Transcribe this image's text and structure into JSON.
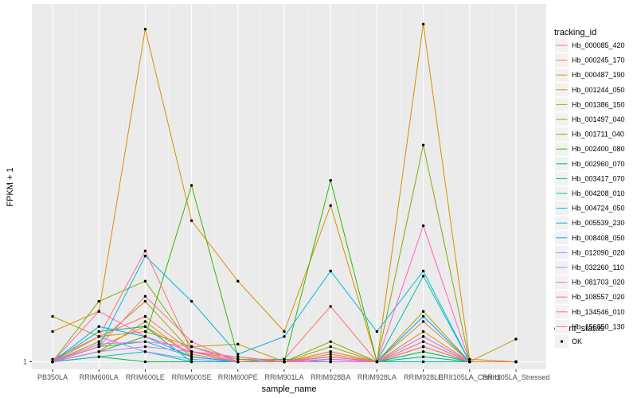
{
  "chart_data": {
    "type": "line",
    "xlabel": "sample_name",
    "ylabel": "FPKM + 1",
    "y_ticks": [
      "1"
    ],
    "ylim": [
      0.85,
      8.1
    ],
    "grid": true,
    "legend_placement": "right",
    "categories": [
      "PB350LA",
      "RRIM600LA",
      "RRIM600LE",
      "RRIM600SE",
      "RRIM600PE",
      "RRIM901LA",
      "RRIM928BA",
      "RRIM928LA",
      "RRIM928LE",
      "RRII105LA_Control",
      "RRII105LA_Stressed"
    ],
    "legend_title": "tracking_id",
    "series": [
      {
        "name": "Hb_000085_420",
        "color": "#F8766D",
        "values": [
          1.05,
          1.5,
          1.9,
          1.2,
          1.05,
          1.05,
          2.1,
          1.0,
          1.3,
          1.0,
          1.0
        ]
      },
      {
        "name": "Hb_000245_170",
        "color": "#F0823B",
        "values": [
          1.0,
          1.3,
          1.7,
          1.15,
          1.0,
          1.0,
          1.2,
          1.0,
          1.8,
          1.0,
          1.0
        ]
      },
      {
        "name": "Hb_000487_190",
        "color": "#E48F00",
        "values": [
          1.0,
          1.2,
          1.8,
          1.1,
          1.0,
          1.0,
          1.15,
          1.0,
          1.6,
          1.0,
          1.0
        ]
      },
      {
        "name": "Hb_001244_050",
        "color": "#D89000",
        "values": [
          1.6,
          2.0,
          7.6,
          3.8,
          2.6,
          1.6,
          4.1,
          1.0,
          7.7,
          1.05,
          1.0
        ]
      },
      {
        "name": "Hb_001386_150",
        "color": "#C09B00",
        "values": [
          1.9,
          1.5,
          1.6,
          1.3,
          1.35,
          1.0,
          1.1,
          1.0,
          1.4,
          1.0,
          1.45
        ]
      },
      {
        "name": "Hb_001497_040",
        "color": "#A3A500",
        "values": [
          1.0,
          1.4,
          2.2,
          1.2,
          1.0,
          1.0,
          1.3,
          1.0,
          2.0,
          1.0,
          1.0
        ]
      },
      {
        "name": "Hb_001711_040",
        "color": "#7CAE00",
        "values": [
          1.0,
          2.2,
          2.6,
          1.3,
          1.05,
          1.0,
          1.4,
          1.0,
          5.3,
          1.0,
          1.0
        ]
      },
      {
        "name": "Hb_002400_080",
        "color": "#39B600",
        "values": [
          1.0,
          1.2,
          1.5,
          4.5,
          1.1,
          1.0,
          4.6,
          1.0,
          1.2,
          1.0,
          1.0
        ]
      },
      {
        "name": "Hb_002960_070",
        "color": "#00BB4E",
        "values": [
          1.0,
          1.1,
          1.0,
          1.0,
          1.0,
          1.0,
          1.1,
          1.0,
          1.1,
          1.0,
          1.0
        ]
      },
      {
        "name": "Hb_003417_070",
        "color": "#00BF7D",
        "values": [
          1.0,
          1.6,
          1.7,
          1.0,
          1.0,
          1.0,
          1.0,
          1.0,
          1.2,
          1.0,
          1.0
        ]
      },
      {
        "name": "Hb_004208_010",
        "color": "#00C1A3",
        "values": [
          1.0,
          1.3,
          1.4,
          1.1,
          1.0,
          1.05,
          1.0,
          1.0,
          2.7,
          1.0,
          1.0
        ]
      },
      {
        "name": "Hb_004724_050",
        "color": "#00BFC4",
        "values": [
          1.0,
          1.1,
          1.2,
          1.0,
          1.0,
          1.0,
          1.0,
          1.0,
          1.0,
          1.0,
          1.0
        ]
      },
      {
        "name": "Hb_005539_230",
        "color": "#00B8E5",
        "values": [
          1.0,
          1.3,
          3.1,
          2.2,
          1.15,
          1.5,
          2.8,
          1.6,
          2.8,
          1.0,
          1.0
        ]
      },
      {
        "name": "Hb_008408_050",
        "color": "#00A9FF",
        "values": [
          1.0,
          1.7,
          1.5,
          1.1,
          1.0,
          1.0,
          1.1,
          1.0,
          1.9,
          1.0,
          1.0
        ]
      },
      {
        "name": "Hb_012090_020",
        "color": "#8794FF",
        "values": [
          1.0,
          1.5,
          1.2,
          1.05,
          1.0,
          1.0,
          1.05,
          1.0,
          1.5,
          1.0,
          1.0
        ]
      },
      {
        "name": "Hb_032260_110",
        "color": "#C77CFF",
        "values": [
          1.0,
          1.2,
          1.3,
          1.2,
          1.0,
          1.0,
          1.0,
          1.0,
          1.5,
          1.0,
          1.0
        ]
      },
      {
        "name": "Hb_081703_020",
        "color": "#E76BF3",
        "values": [
          1.0,
          1.35,
          1.4,
          1.3,
          1.0,
          1.0,
          1.05,
          1.0,
          1.3,
          1.0,
          1.0
        ]
      },
      {
        "name": "Hb_108557_020",
        "color": "#FF61C3",
        "values": [
          1.0,
          2.0,
          1.5,
          1.2,
          1.1,
          1.0,
          1.05,
          1.0,
          3.7,
          1.0,
          1.0
        ]
      },
      {
        "name": "Hb_134546_010",
        "color": "#FF6C91",
        "values": [
          1.0,
          1.3,
          2.3,
          1.4,
          1.0,
          1.0,
          1.1,
          1.0,
          1.4,
          1.0,
          1.0
        ]
      },
      {
        "name": "Hb_156850_130",
        "color": "#F8766D",
        "values": [
          1.0,
          1.5,
          3.2,
          1.2,
          1.0,
          1.0,
          1.2,
          1.0,
          1.3,
          1.0,
          1.0
        ]
      }
    ],
    "legend2_title": "quant_status",
    "legend2_entries": [
      "OK"
    ]
  }
}
